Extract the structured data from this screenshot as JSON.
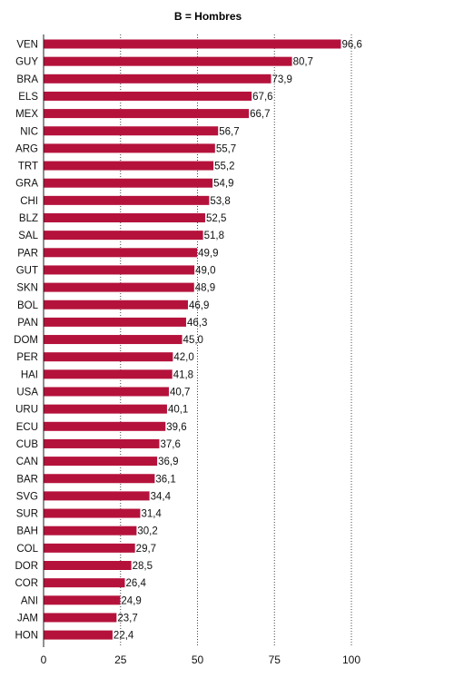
{
  "chart_data": {
    "type": "bar",
    "orientation": "horizontal",
    "title": "B = Hombres",
    "categories": [
      "VEN",
      "GUY",
      "BRA",
      "ELS",
      "MEX",
      "NIC",
      "ARG",
      "TRT",
      "GRA",
      "CHI",
      "BLZ",
      "SAL",
      "PAR",
      "GUT",
      "SKN",
      "BOL",
      "PAN",
      "DOM",
      "PER",
      "HAI",
      "USA",
      "URU",
      "ECU",
      "CUB",
      "CAN",
      "BAR",
      "SVG",
      "SUR",
      "BAH",
      "COL",
      "DOR",
      "COR",
      "ANI",
      "JAM",
      "HON"
    ],
    "values": [
      96.6,
      80.7,
      73.9,
      67.6,
      66.7,
      56.7,
      55.7,
      55.2,
      54.9,
      53.8,
      52.5,
      51.8,
      49.9,
      49.0,
      48.9,
      46.9,
      46.3,
      45.0,
      42.0,
      41.8,
      40.7,
      40.1,
      39.6,
      37.6,
      36.9,
      36.1,
      34.4,
      31.4,
      30.2,
      29.7,
      28.5,
      26.4,
      24.9,
      23.7,
      22.4
    ],
    "value_labels": [
      "96,6",
      "80,7",
      "73,9",
      "67,6",
      "66,7",
      "56,7",
      "55,7",
      "55,2",
      "54,9",
      "53,8",
      "52,5",
      "51,8",
      "49,9",
      "49,0",
      "48,9",
      "46,9",
      "46,3",
      "45,0",
      "42,0",
      "41,8",
      "40,7",
      "40,1",
      "39,6",
      "37,6",
      "36,9",
      "36,1",
      "34,4",
      "31,4",
      "30,2",
      "29,7",
      "28,5",
      "26,4",
      "24,9",
      "23,7",
      "22,4"
    ],
    "xlim": [
      0,
      100
    ],
    "xticks": [
      "0",
      "25",
      "50",
      "75",
      "100"
    ],
    "xtick_values": [
      0,
      25,
      50,
      75,
      100
    ],
    "grid": "vertical dotted",
    "bar_color": "#b5123b"
  }
}
